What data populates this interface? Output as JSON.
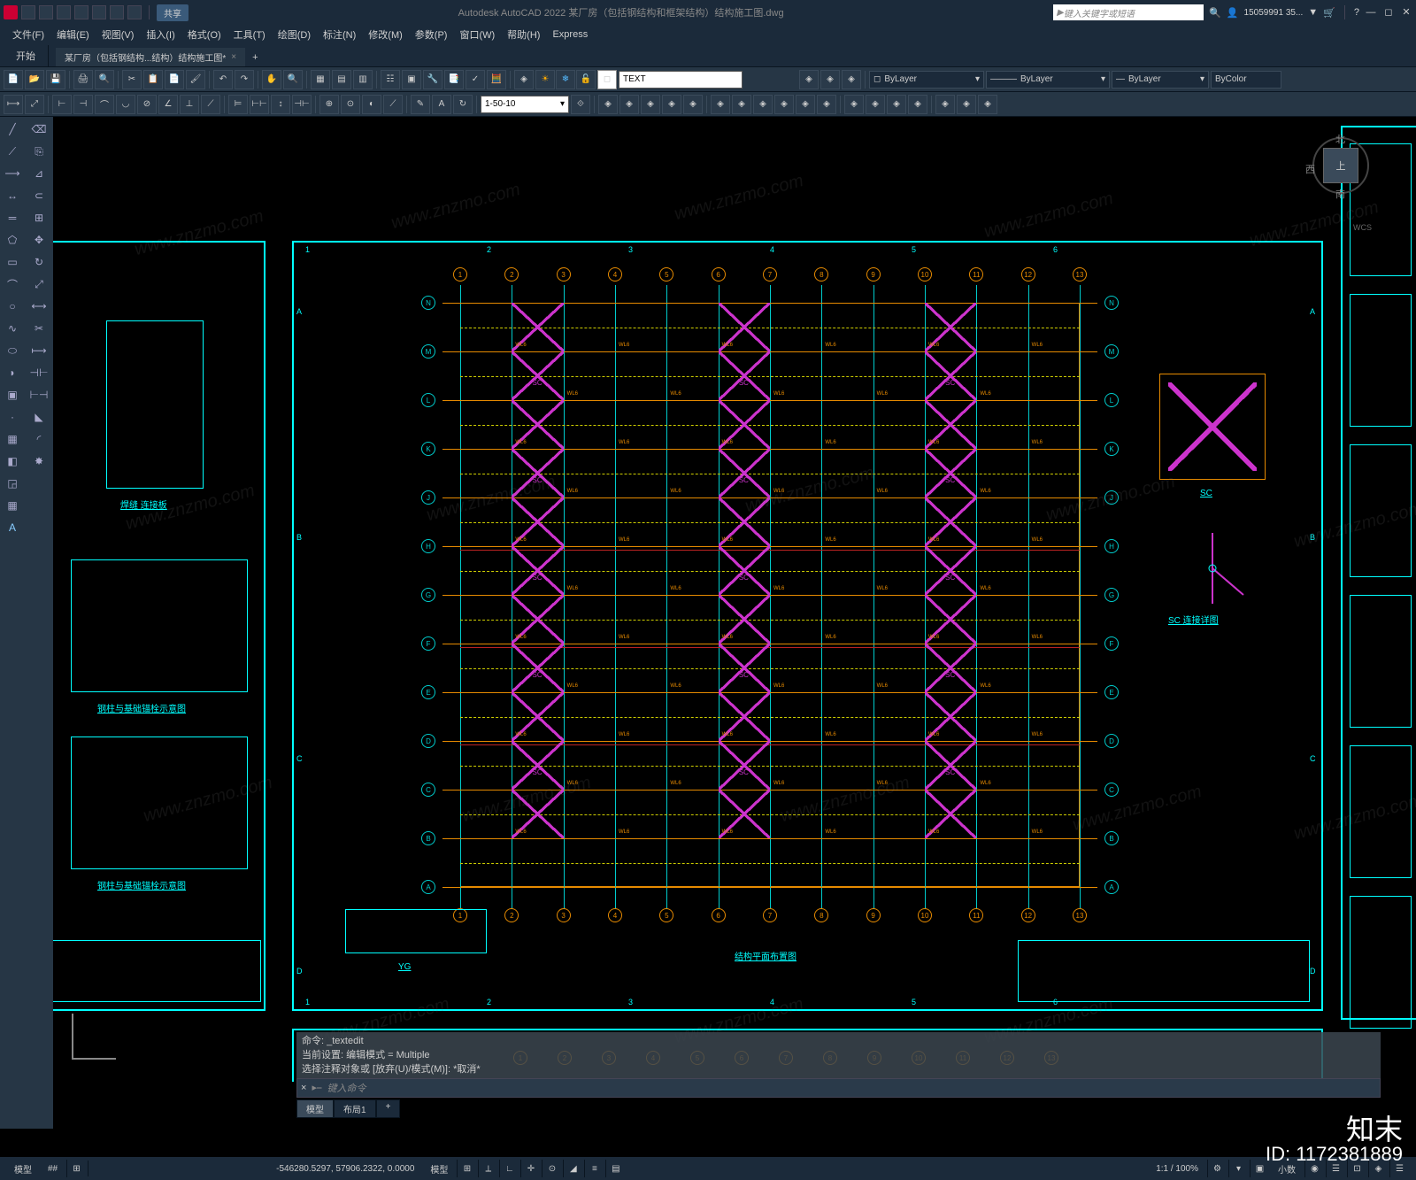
{
  "app": {
    "title": "Autodesk AutoCAD 2022    某厂房（包括钢结构和框架结构）结构施工图.dwg",
    "search_placeholder": "键入关键字或短语",
    "user": "15059991 35...",
    "share": "共享"
  },
  "menus": [
    "文件(F)",
    "编辑(E)",
    "视图(V)",
    "插入(I)",
    "格式(O)",
    "工具(T)",
    "绘图(D)",
    "标注(N)",
    "修改(M)",
    "参数(P)",
    "窗口(W)",
    "帮助(H)",
    "Express"
  ],
  "tab_start": "开始",
  "tab_file": "某厂房（包括钢结构...结构）结构施工图*",
  "ribbon": {
    "text_input": "TEXT",
    "scale_input": "1-50-10",
    "layer_current": "ByLayer",
    "linetype": "ByLayer",
    "lineweight": "ByLayer",
    "plotstyle": "ByColor"
  },
  "viewcube": {
    "top": "上",
    "n": "北",
    "s": "南",
    "w": "西",
    "wcs": "WCS"
  },
  "cmd": {
    "hist1": "命令: _textedit",
    "hist2": "当前设置: 编辑模式 = Multiple",
    "hist3": "选择注释对象或 [放弃(U)/模式(M)]: *取消*",
    "prompt": "键入命令"
  },
  "layouts": {
    "model": "模型",
    "l1": "布局1",
    "plus": "+"
  },
  "status": {
    "model": "模型",
    "grid": "##",
    "coords": "-546280.5297, 57906.2322, 0.0000",
    "scale": "1:1 / 100%",
    "decimal": "小数"
  },
  "drawing": {
    "main_title": "结构平面布置图",
    "yg_title": "YG",
    "sc_title": "SC",
    "sc_detail_title": "SC 连接详图",
    "left_caption1": "焊缝 连接板",
    "left_caption2": "钢柱与基础锚栓示意图",
    "left_caption3": "钢柱与基础锚栓示意图",
    "grid_cols": [
      "1",
      "2",
      "3",
      "4",
      "5",
      "6",
      "7",
      "8",
      "9",
      "10",
      "11",
      "12",
      "13"
    ],
    "grid_rows": [
      "A",
      "B",
      "C",
      "D",
      "E",
      "F",
      "G",
      "H",
      "J",
      "K",
      "L",
      "M",
      "N"
    ],
    "frame_cols": [
      "1",
      "2",
      "3",
      "4",
      "5",
      "6"
    ],
    "frame_rows": [
      "A",
      "B",
      "C",
      "D"
    ],
    "beam_label": "WL6",
    "beam_label2": "WL5",
    "col_label": "SC",
    "colors": {
      "cyan": "#00ffff",
      "orange": "#e68a00",
      "magenta": "#cc33cc",
      "yellow": "#cccc00",
      "red": "#bb2222",
      "bg": "#000000"
    }
  },
  "watermark": {
    "text": "www.znzmo.com",
    "brand": "知末",
    "id": "ID: 1172381889"
  }
}
